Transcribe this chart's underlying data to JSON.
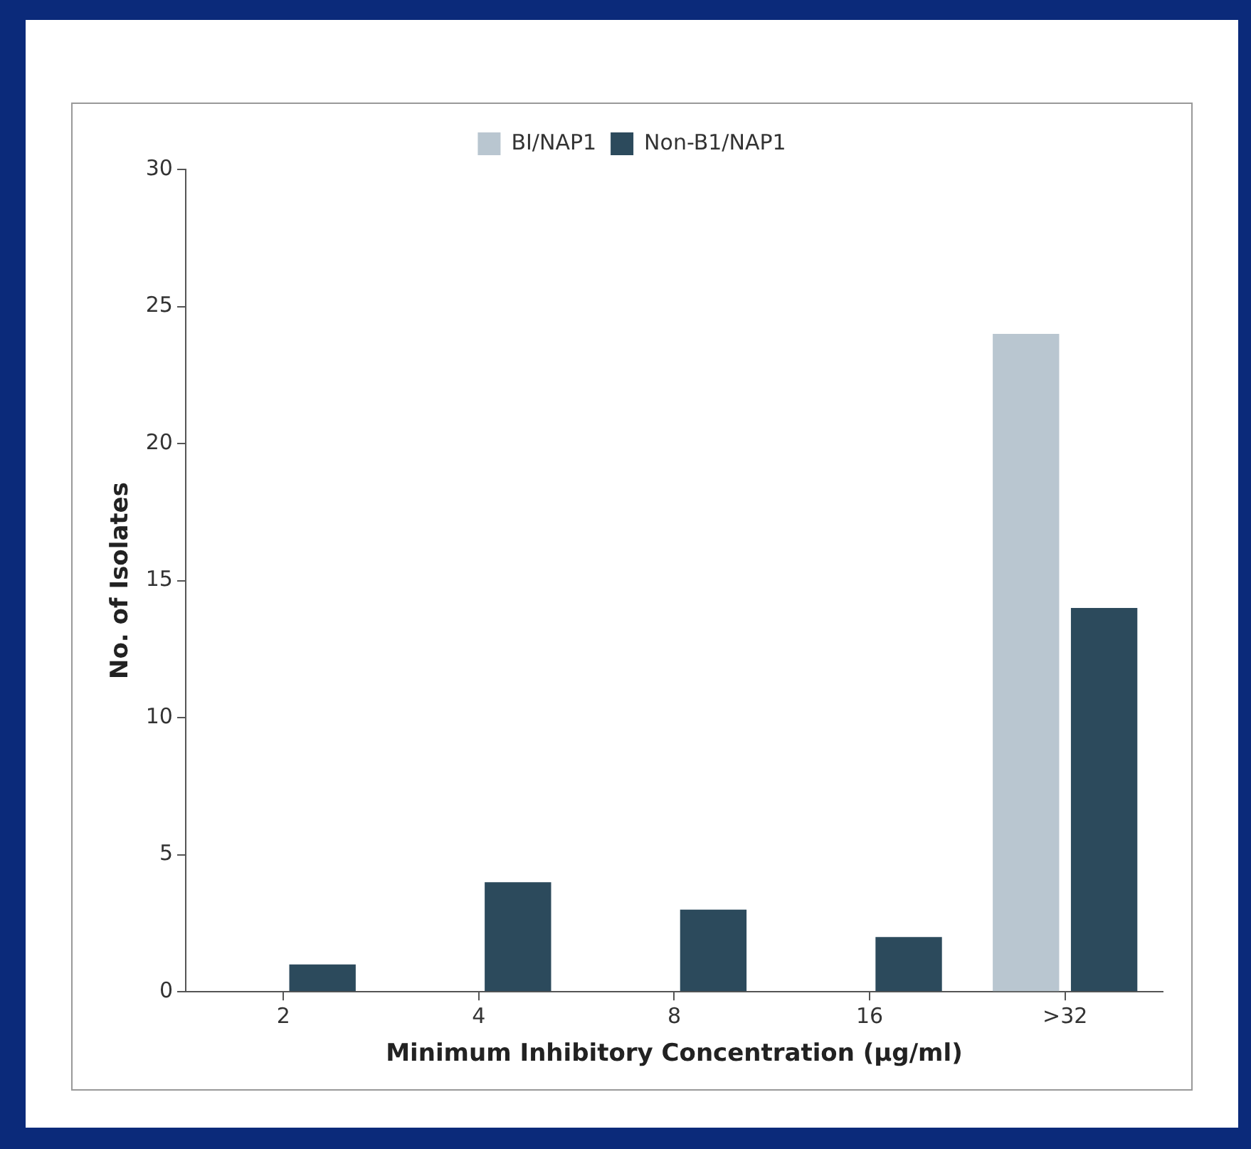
{
  "chart_data": {
    "type": "bar",
    "categories": [
      "2",
      "4",
      "8",
      "16",
      ">32"
    ],
    "series": [
      {
        "name": "BI/NAP1",
        "color": "#b9c6d0",
        "values": [
          0,
          0,
          0,
          0,
          24
        ]
      },
      {
        "name": "Non-B1/NAP1",
        "color": "#2c4a5c",
        "values": [
          1,
          4,
          3,
          2,
          14
        ]
      }
    ],
    "xlabel": "Minimum Inhibitory Concentration (µg/ml)",
    "ylabel": "No. of Isolates",
    "ylim": [
      0,
      30
    ],
    "yticks": [
      0,
      5,
      10,
      15,
      20,
      25,
      30
    ],
    "grid": false,
    "legend": "top"
  }
}
